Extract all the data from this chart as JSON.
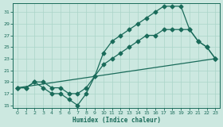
{
  "bg_color": "#cce8e0",
  "grid_color": "#aad4c8",
  "line_color": "#1a6b5a",
  "markersize": 2.5,
  "linewidth": 0.9,
  "xlabel": "Humidex (Indice chaleur)",
  "xlim": [
    -0.5,
    23.5
  ],
  "ylim": [
    14.5,
    32.5
  ],
  "xticks": [
    0,
    1,
    2,
    3,
    4,
    5,
    6,
    7,
    8,
    9,
    10,
    11,
    12,
    13,
    14,
    15,
    16,
    17,
    18,
    19,
    20,
    21,
    22,
    23
  ],
  "yticks": [
    15,
    17,
    19,
    21,
    23,
    25,
    27,
    29,
    31
  ],
  "line1_x": [
    0,
    1,
    2,
    3,
    4,
    5,
    6,
    7,
    8,
    9,
    10,
    11,
    12,
    13,
    14,
    15,
    16,
    17,
    18,
    19,
    20,
    21,
    22,
    23
  ],
  "line1_y": [
    18,
    18,
    19,
    18,
    17,
    17,
    16,
    15,
    17,
    20,
    24,
    26,
    27,
    28,
    29,
    30,
    31,
    32,
    32,
    32,
    28,
    26,
    25,
    23
  ],
  "line2_x": [
    0,
    1,
    2,
    3,
    4,
    5,
    6,
    7,
    8,
    9,
    10,
    11,
    12,
    13,
    14,
    15,
    16,
    17,
    18,
    19,
    20,
    21,
    22,
    23
  ],
  "line2_y": [
    18,
    18,
    19,
    19,
    18,
    18,
    17,
    17,
    18,
    20,
    22,
    23,
    24,
    25,
    26,
    27,
    27,
    28,
    28,
    28,
    28,
    26,
    25,
    23
  ],
  "line3_x": [
    0,
    23
  ],
  "line3_y": [
    18,
    23
  ]
}
